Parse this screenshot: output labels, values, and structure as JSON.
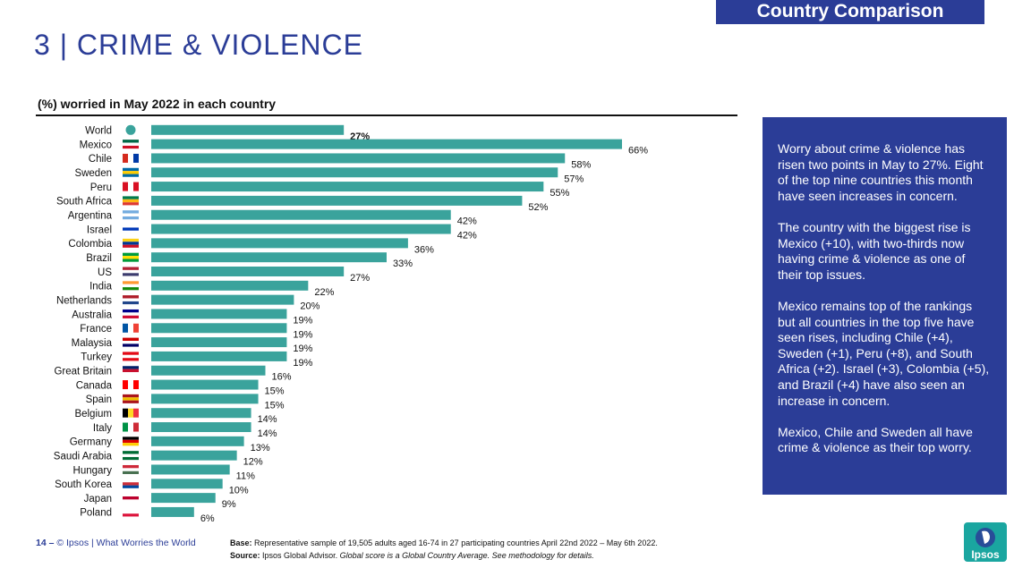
{
  "header": {
    "banner": "Country Comparison",
    "title": "3 | CRIME & VIOLENCE"
  },
  "chart_data": {
    "type": "bar",
    "orientation": "horizontal",
    "title": "(%) worried in May 2022 in each country",
    "categories": [
      "World",
      "Mexico",
      "Chile",
      "Sweden",
      "Peru",
      "South Africa",
      "Argentina",
      "Israel",
      "Colombia",
      "Brazil",
      "US",
      "India",
      "Netherlands",
      "Australia",
      "France",
      "Malaysia",
      "Turkey",
      "Great Britain",
      "Canada",
      "Spain",
      "Belgium",
      "Italy",
      "Germany",
      "Saudi Arabia",
      "Hungary",
      "South Korea",
      "Japan",
      "Poland"
    ],
    "values": [
      27,
      66,
      58,
      57,
      55,
      52,
      42,
      42,
      36,
      33,
      27,
      22,
      20,
      19,
      19,
      19,
      19,
      16,
      15,
      15,
      14,
      14,
      13,
      12,
      11,
      10,
      9,
      6
    ],
    "value_labels": [
      "27%",
      "66%",
      "58%",
      "57%",
      "55%",
      "52%",
      "42%",
      "42%",
      "36%",
      "33%",
      "27%",
      "22%",
      "20%",
      "19%",
      "19%",
      "19%",
      "19%",
      "16%",
      "15%",
      "15%",
      "14%",
      "14%",
      "13%",
      "12%",
      "11%",
      "10%",
      "9%",
      "6%"
    ],
    "highlighted": "World",
    "flag_icons": [
      "globe-icon",
      "mexico-flag-icon",
      "chile-flag-icon",
      "sweden-flag-icon",
      "peru-flag-icon",
      "south-africa-flag-icon",
      "argentina-flag-icon",
      "israel-flag-icon",
      "colombia-flag-icon",
      "brazil-flag-icon",
      "us-flag-icon",
      "india-flag-icon",
      "netherlands-flag-icon",
      "australia-flag-icon",
      "france-flag-icon",
      "malaysia-flag-icon",
      "turkey-flag-icon",
      "great-britain-flag-icon",
      "canada-flag-icon",
      "spain-flag-icon",
      "belgium-flag-icon",
      "italy-flag-icon",
      "germany-flag-icon",
      "saudi-arabia-flag-icon",
      "hungary-flag-icon",
      "south-korea-flag-icon",
      "japan-flag-icon",
      "poland-flag-icon"
    ],
    "bar_color": "#3aa39c",
    "xlim": [
      0,
      66
    ]
  },
  "sidebar": {
    "paragraphs": [
      "Worry about crime & violence has risen two points in May to 27%. Eight of the top nine countries this month have seen increases in concern.",
      "The country with the biggest rise is Mexico (+10), with two-thirds now having crime & violence as one of their top issues.",
      "Mexico remains top of the rankings but all countries in the top five have seen rises, including Chile (+4), Sweden (+1), Peru (+8), and South Africa (+2). Israel (+3), Colombia (+5), and Brazil (+4) have also seen an increase in concern.",
      "Mexico, Chile and Sweden all have crime & violence as their top worry."
    ]
  },
  "footer": {
    "page_number": "14 –",
    "credit": "© Ipsos | What Worries the World",
    "base_label": "Base:",
    "base_text": "Representative sample of 19,505 adults aged 16-74 in 27 participating countries April 22nd 2022 – May 6th 2022.",
    "source_label": "Source:",
    "source_text": "Ipsos Global Advisor.",
    "source_note": "Global score is a Global Country Average. See methodology for details.",
    "logo_text": "Ipsos"
  },
  "colors": {
    "brand_blue": "#2b3d97",
    "bar": "#3aa39c",
    "logo": "#1aa6a0"
  }
}
